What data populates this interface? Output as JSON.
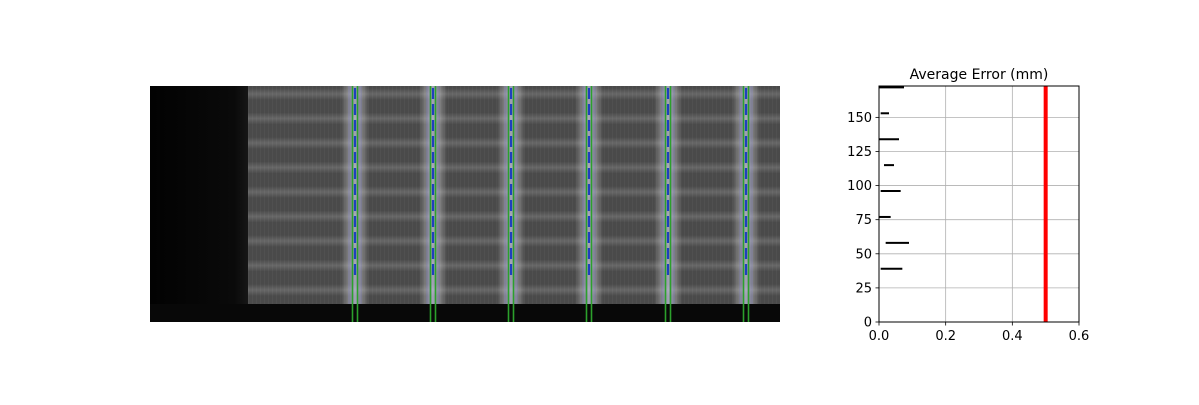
{
  "chart_data": [
    {
      "type": "image",
      "description_rendered": false,
      "colormap": "gray",
      "markers": [
        {
          "kind": "vertical-line-pair",
          "color": "#2ca02c"
        },
        {
          "kind": "dashed-vertical-line",
          "color": "#1f3fbf"
        }
      ]
    },
    {
      "type": "hbar",
      "title": "Average Error (mm)",
      "xlabel": "",
      "ylabel": "",
      "xlim": [
        0,
        0.6
      ],
      "ylim": [
        0,
        173
      ],
      "xticks": [
        "0.0",
        "0.2",
        "0.4",
        "0.6"
      ],
      "yticks": [
        "0",
        "25",
        "50",
        "75",
        "100",
        "125",
        "150"
      ],
      "grid": true,
      "segments": [
        {
          "y": 172,
          "x0": 0.0,
          "x1": 0.075
        },
        {
          "y": 153,
          "x0": 0.005,
          "x1": 0.03
        },
        {
          "y": 134,
          "x0": 0.0,
          "x1": 0.06
        },
        {
          "y": 115,
          "x0": 0.015,
          "x1": 0.045
        },
        {
          "y": 96,
          "x0": 0.005,
          "x1": 0.065
        },
        {
          "y": 77,
          "x0": 0.0,
          "x1": 0.035
        },
        {
          "y": 58,
          "x0": 0.02,
          "x1": 0.09
        },
        {
          "y": 39,
          "x0": 0.005,
          "x1": 0.07
        }
      ],
      "threshold": {
        "x": 0.5,
        "color": "#ff0000"
      }
    }
  ]
}
